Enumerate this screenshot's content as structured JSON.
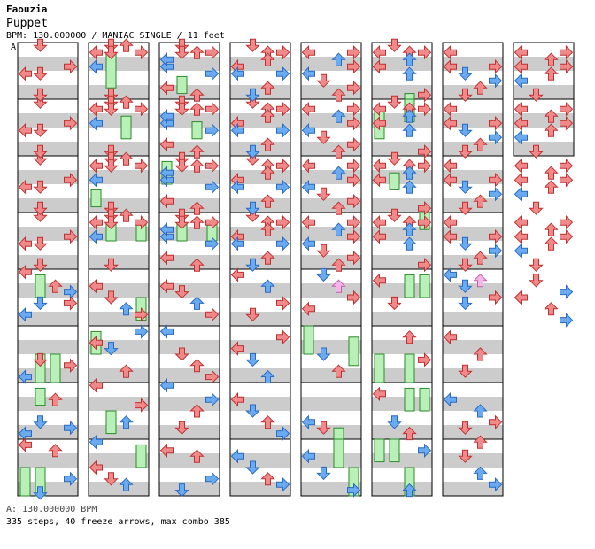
{
  "header": {
    "artist": "Faouzia",
    "title": "Puppet",
    "info": "BPM: 130.000000 / MANIAC SINGLE / 11 feet",
    "bpm_marker": "A"
  },
  "footer": {
    "bpm_line": "A: 130.000000 BPM",
    "stats_line": "335 steps, 40 freeze arrows, max combo 385"
  },
  "colors": {
    "quarter": "#f08a8a",
    "eighth": "#6aaaf0",
    "sixteenth": "#f5b5e8",
    "freeze": "#b8f0b8",
    "stripe": "#cccccc"
  },
  "chart": {
    "columns": 8,
    "measures_per_column": 8,
    "total_measures": 58,
    "notes": [
      [
        0,
        0,
        1,
        0,
        "r"
      ],
      [
        0,
        1,
        3,
        1,
        "r"
      ],
      [
        1,
        1,
        0,
        1,
        "b"
      ],
      [
        0,
        2,
        1,
        0,
        "r"
      ],
      [
        0,
        2,
        0,
        0,
        "r"
      ],
      [
        0,
        3,
        1,
        1,
        "r"
      ],
      [
        1,
        3,
        1,
        1,
        "r"
      ],
      [
        1,
        0,
        1,
        0,
        "r"
      ],
      [
        1,
        0,
        1,
        1,
        "r"
      ],
      [
        1,
        0,
        0,
        1,
        "r"
      ],
      [
        1,
        0,
        2,
        0,
        "r"
      ],
      [
        1,
        0,
        3,
        1,
        "r"
      ],
      [
        2,
        0,
        1,
        0,
        "r"
      ],
      [
        2,
        0,
        1,
        1,
        "r"
      ],
      [
        2,
        0,
        2,
        1,
        "r"
      ],
      [
        2,
        0,
        3,
        1,
        "r"
      ],
      [
        2,
        1,
        0,
        1,
        "b"
      ],
      [
        2,
        1,
        0,
        0,
        "b"
      ],
      [
        2,
        2,
        3,
        0,
        "b"
      ],
      [
        2,
        3,
        0,
        0,
        "r"
      ],
      [
        2,
        3,
        2,
        1,
        "r"
      ],
      [
        3,
        0,
        1,
        0,
        "r"
      ],
      [
        3,
        0,
        2,
        1,
        "r"
      ],
      [
        3,
        0,
        3,
        1,
        "r"
      ],
      [
        3,
        1,
        0,
        1,
        "r"
      ],
      [
        3,
        1,
        2,
        0,
        "r"
      ],
      [
        3,
        2,
        0,
        0,
        "b"
      ],
      [
        3,
        2,
        3,
        0,
        "b"
      ],
      [
        3,
        3,
        1,
        1,
        "b"
      ],
      [
        3,
        3,
        2,
        0,
        "r"
      ],
      [
        4,
        0,
        0,
        1,
        "r"
      ],
      [
        4,
        0,
        3,
        1,
        "r"
      ],
      [
        4,
        1,
        2,
        0,
        "b"
      ],
      [
        4,
        1,
        3,
        1,
        "r"
      ],
      [
        4,
        2,
        0,
        0,
        "b"
      ],
      [
        4,
        2,
        1,
        1,
        "r"
      ],
      [
        4,
        3,
        2,
        1,
        "r"
      ],
      [
        4,
        3,
        3,
        0,
        "r"
      ],
      [
        5,
        0,
        0,
        1,
        "r"
      ],
      [
        5,
        0,
        2,
        1,
        "r"
      ],
      [
        5,
        0,
        3,
        1,
        "r"
      ],
      [
        5,
        0,
        1,
        0,
        "r"
      ],
      [
        5,
        1,
        2,
        0,
        "b"
      ],
      [
        5,
        1,
        0,
        1,
        "r"
      ],
      [
        5,
        2,
        2,
        0,
        "b"
      ],
      [
        5,
        3,
        3,
        1,
        "r"
      ],
      [
        6,
        0,
        0,
        1,
        "r"
      ],
      [
        6,
        1,
        3,
        1,
        "r"
      ],
      [
        6,
        1,
        0,
        1,
        "r"
      ],
      [
        6,
        2,
        1,
        0,
        "b"
      ],
      [
        6,
        2,
        3,
        1,
        "b"
      ],
      [
        6,
        3,
        1,
        1,
        "r"
      ],
      [
        6,
        3,
        2,
        0,
        "r"
      ],
      [
        7,
        0,
        0,
        1,
        "r"
      ],
      [
        7,
        0,
        3,
        1,
        "r"
      ],
      [
        7,
        1,
        0,
        1,
        "r"
      ],
      [
        7,
        1,
        2,
        0,
        "r"
      ],
      [
        7,
        1,
        3,
        1,
        "r"
      ],
      [
        7,
        2,
        0,
        1,
        "b"
      ],
      [
        7,
        2,
        2,
        0,
        "r"
      ],
      [
        7,
        3,
        1,
        1,
        "r"
      ]
    ],
    "freezes": [
      [
        1,
        0,
        1,
        0.2,
        0.8
      ],
      [
        1,
        1,
        2,
        0.3,
        0.7
      ],
      [
        1,
        2,
        0,
        0.6,
        0.9
      ],
      [
        1,
        3,
        1,
        0.2,
        0.5
      ],
      [
        1,
        3,
        3,
        0.2,
        0.5
      ],
      [
        2,
        0,
        1,
        0.6,
        0.9
      ],
      [
        2,
        1,
        2,
        0.4,
        0.7
      ],
      [
        2,
        2,
        0,
        0.1,
        0.5
      ],
      [
        2,
        3,
        1,
        0.2,
        0.5
      ],
      [
        2,
        3,
        3,
        0.2,
        0.5
      ],
      [
        5,
        0,
        2,
        0.9,
        1.0
      ],
      [
        5,
        1,
        2,
        0.0,
        0.4
      ],
      [
        5,
        1,
        0,
        0.2,
        0.7
      ],
      [
        5,
        2,
        1,
        0.3,
        0.6
      ],
      [
        5,
        3,
        3,
        0.0,
        0.3
      ],
      [
        0,
        4,
        1,
        0.1,
        0.5
      ],
      [
        0,
        5,
        1,
        0.5,
        1.0
      ],
      [
        0,
        5,
        2,
        0.5,
        1.0
      ],
      [
        0,
        6,
        1,
        0.1,
        0.4
      ],
      [
        0,
        7,
        0,
        0.5,
        1.0
      ],
      [
        0,
        7,
        1,
        0.5,
        1.0
      ],
      [
        1,
        4,
        3,
        0.5,
        0.9
      ],
      [
        1,
        5,
        0,
        0.1,
        0.5
      ],
      [
        1,
        6,
        1,
        0.5,
        0.9
      ],
      [
        1,
        7,
        3,
        0.1,
        0.5
      ],
      [
        4,
        5,
        0,
        0.0,
        0.5
      ],
      [
        4,
        5,
        3,
        0.2,
        0.7
      ],
      [
        4,
        6,
        2,
        0.8,
        1.0
      ],
      [
        4,
        7,
        2,
        0.0,
        0.5
      ],
      [
        4,
        7,
        3,
        0.5,
        1.0
      ],
      [
        5,
        4,
        2,
        0.1,
        0.5
      ],
      [
        5,
        4,
        3,
        0.1,
        0.5
      ],
      [
        5,
        5,
        0,
        0.5,
        1.0
      ],
      [
        5,
        5,
        2,
        0.5,
        1.0
      ],
      [
        5,
        6,
        2,
        0.1,
        0.5
      ],
      [
        5,
        6,
        3,
        0.1,
        0.5
      ],
      [
        5,
        7,
        0,
        0.0,
        0.4
      ],
      [
        5,
        7,
        1,
        0.0,
        0.4
      ],
      [
        5,
        7,
        2,
        0.5,
        1.0
      ]
    ],
    "extra_steps": [
      [
        0,
        4,
        0,
        0.0,
        "r"
      ],
      [
        0,
        4,
        2,
        0.3,
        "r"
      ],
      [
        0,
        4,
        3,
        0.4,
        "b"
      ],
      [
        0,
        4,
        0,
        0.8,
        "b"
      ],
      [
        0,
        4,
        1,
        0.6,
        "b"
      ],
      [
        0,
        4,
        3,
        0.6,
        "r"
      ],
      [
        0,
        5,
        3,
        0.7,
        "r"
      ],
      [
        0,
        5,
        0,
        0.9,
        "b"
      ],
      [
        0,
        5,
        1,
        0.6,
        "r"
      ],
      [
        0,
        6,
        0,
        0.9,
        "b"
      ],
      [
        0,
        6,
        1,
        0.7,
        "b"
      ],
      [
        0,
        6,
        3,
        0.8,
        "b"
      ],
      [
        0,
        6,
        2,
        0.3,
        "r"
      ],
      [
        0,
        7,
        0,
        0.1,
        "r"
      ],
      [
        0,
        7,
        2,
        0.2,
        "r"
      ],
      [
        0,
        7,
        3,
        0.7,
        "b"
      ],
      [
        0,
        7,
        1,
        1.0,
        "b"
      ],
      [
        1,
        4,
        0,
        0.3,
        "r"
      ],
      [
        1,
        4,
        1,
        0.5,
        "r"
      ],
      [
        1,
        4,
        2,
        0.7,
        "b"
      ],
      [
        1,
        4,
        3,
        0.8,
        "r"
      ],
      [
        1,
        5,
        0,
        0.3,
        "r"
      ],
      [
        1,
        5,
        1,
        0.4,
        "b"
      ],
      [
        1,
        5,
        2,
        0.8,
        "r"
      ],
      [
        1,
        5,
        3,
        0.1,
        "b"
      ],
      [
        1,
        6,
        0,
        0.0,
        "r"
      ],
      [
        1,
        6,
        2,
        0.7,
        "b"
      ],
      [
        1,
        6,
        3,
        0.4,
        "r"
      ],
      [
        1,
        7,
        0,
        0.0,
        "b"
      ],
      [
        1,
        7,
        1,
        0.7,
        "r"
      ],
      [
        1,
        7,
        2,
        0.8,
        "b"
      ],
      [
        1,
        7,
        0,
        0.5,
        "r"
      ],
      [
        2,
        4,
        0,
        0.3,
        "r"
      ],
      [
        2,
        4,
        1,
        0.4,
        "r"
      ],
      [
        2,
        4,
        2,
        0.6,
        "b"
      ],
      [
        2,
        4,
        3,
        0.8,
        "r"
      ],
      [
        2,
        5,
        0,
        0.1,
        "b"
      ],
      [
        2,
        5,
        1,
        0.5,
        "r"
      ],
      [
        2,
        5,
        2,
        0.7,
        "r"
      ],
      [
        2,
        5,
        3,
        0.9,
        "r"
      ],
      [
        2,
        6,
        0,
        0.0,
        "b"
      ],
      [
        2,
        6,
        2,
        0.5,
        "r"
      ],
      [
        2,
        6,
        3,
        0.3,
        "b"
      ],
      [
        2,
        6,
        1,
        0.8,
        "r"
      ],
      [
        2,
        7,
        0,
        0.2,
        "r"
      ],
      [
        2,
        7,
        2,
        0.3,
        "r"
      ],
      [
        2,
        7,
        3,
        0.7,
        "b"
      ],
      [
        2,
        7,
        1,
        0.9,
        "b"
      ],
      [
        3,
        4,
        0,
        0.1,
        "r"
      ],
      [
        3,
        4,
        2,
        0.3,
        "b"
      ],
      [
        3,
        4,
        3,
        0.6,
        "r"
      ],
      [
        3,
        4,
        1,
        0.8,
        "r"
      ],
      [
        3,
        5,
        0,
        0.4,
        "r"
      ],
      [
        3,
        5,
        1,
        0.6,
        "b"
      ],
      [
        3,
        5,
        3,
        0.2,
        "r"
      ],
      [
        3,
        5,
        2,
        0.9,
        "b"
      ],
      [
        3,
        6,
        0,
        0.3,
        "r"
      ],
      [
        3,
        6,
        1,
        0.5,
        "b"
      ],
      [
        3,
        6,
        2,
        0.7,
        "r"
      ],
      [
        3,
        6,
        3,
        0.9,
        "b"
      ],
      [
        3,
        7,
        0,
        0.3,
        "b"
      ],
      [
        3,
        7,
        1,
        0.5,
        "b"
      ],
      [
        3,
        7,
        2,
        0.7,
        "r"
      ],
      [
        3,
        7,
        3,
        0.8,
        "b"
      ],
      [
        4,
        4,
        1,
        0.1,
        "b"
      ],
      [
        4,
        4,
        2,
        0.3,
        "p"
      ],
      [
        4,
        4,
        3,
        0.5,
        "r"
      ],
      [
        4,
        4,
        0,
        0.7,
        "r"
      ],
      [
        4,
        5,
        2,
        0.8,
        "r"
      ],
      [
        4,
        5,
        1,
        0.5,
        "b"
      ],
      [
        4,
        6,
        0,
        0.7,
        "b"
      ],
      [
        4,
        6,
        1,
        0.8,
        "r"
      ],
      [
        4,
        7,
        0,
        0.3,
        "b"
      ],
      [
        4,
        7,
        1,
        0.6,
        "b"
      ],
      [
        4,
        7,
        3,
        0.9,
        "b"
      ],
      [
        5,
        4,
        0,
        0.2,
        "r"
      ],
      [
        5,
        4,
        1,
        0.6,
        "r"
      ],
      [
        5,
        5,
        2,
        0.2,
        "r"
      ],
      [
        5,
        5,
        3,
        0.6,
        "r"
      ],
      [
        5,
        6,
        0,
        0.2,
        "r"
      ],
      [
        5,
        6,
        1,
        0.7,
        "b"
      ],
      [
        5,
        6,
        2,
        0.9,
        "r"
      ],
      [
        5,
        7,
        3,
        0.2,
        "b"
      ],
      [
        5,
        7,
        2,
        0.9,
        "b"
      ],
      [
        6,
        4,
        0,
        0.1,
        "b"
      ],
      [
        6,
        4,
        1,
        0.3,
        "b"
      ],
      [
        6,
        4,
        2,
        0.2,
        "p"
      ],
      [
        6,
        4,
        3,
        0.5,
        "r"
      ],
      [
        6,
        4,
        1,
        0.6,
        "b"
      ],
      [
        6,
        5,
        0,
        0.2,
        "r"
      ],
      [
        6,
        5,
        2,
        0.5,
        "r"
      ],
      [
        6,
        5,
        1,
        0.8,
        "r"
      ],
      [
        6,
        6,
        0,
        0.3,
        "b"
      ],
      [
        6,
        6,
        2,
        0.5,
        "b"
      ],
      [
        6,
        6,
        3,
        0.7,
        "r"
      ],
      [
        6,
        6,
        1,
        0.8,
        "r"
      ],
      [
        6,
        7,
        2,
        0.0,
        "r"
      ],
      [
        6,
        7,
        1,
        0.3,
        "r"
      ],
      [
        6,
        7,
        2,
        0.6,
        "b"
      ],
      [
        6,
        7,
        3,
        0.8,
        "b"
      ],
      [
        7,
        4,
        1,
        0.2,
        "r"
      ],
      [
        7,
        4,
        3,
        0.4,
        "b"
      ],
      [
        7,
        4,
        0,
        0.5,
        "r"
      ],
      [
        7,
        4,
        2,
        0.7,
        "r"
      ],
      [
        7,
        4,
        3,
        0.9,
        "b"
      ]
    ]
  }
}
